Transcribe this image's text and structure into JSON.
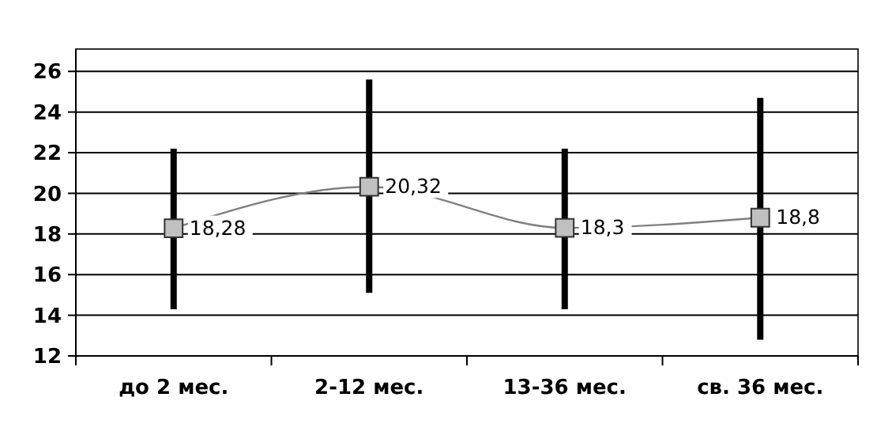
{
  "chart_data": {
    "type": "line",
    "categories": [
      "до 2 мес.",
      "2-12 мес.",
      "13-36 мес.",
      "св. 36 мес."
    ],
    "series": [
      {
        "color": "#808080",
        "values": [
          18.28,
          20.32,
          18.3,
          18.8
        ],
        "errors": [
          [
            14.3,
            22.2
          ],
          [
            15.1,
            25.6
          ],
          [
            14.3,
            22.2
          ],
          [
            12.8,
            24.7
          ]
        ],
        "value_labels": [
          "18,28",
          "20,32",
          "18,3",
          "18,8"
        ]
      }
    ],
    "ylim": [
      12,
      27.1
    ],
    "yticks": [
      12,
      14,
      16,
      18,
      20,
      22,
      24,
      26
    ],
    "grid": "y",
    "marker": "square"
  }
}
